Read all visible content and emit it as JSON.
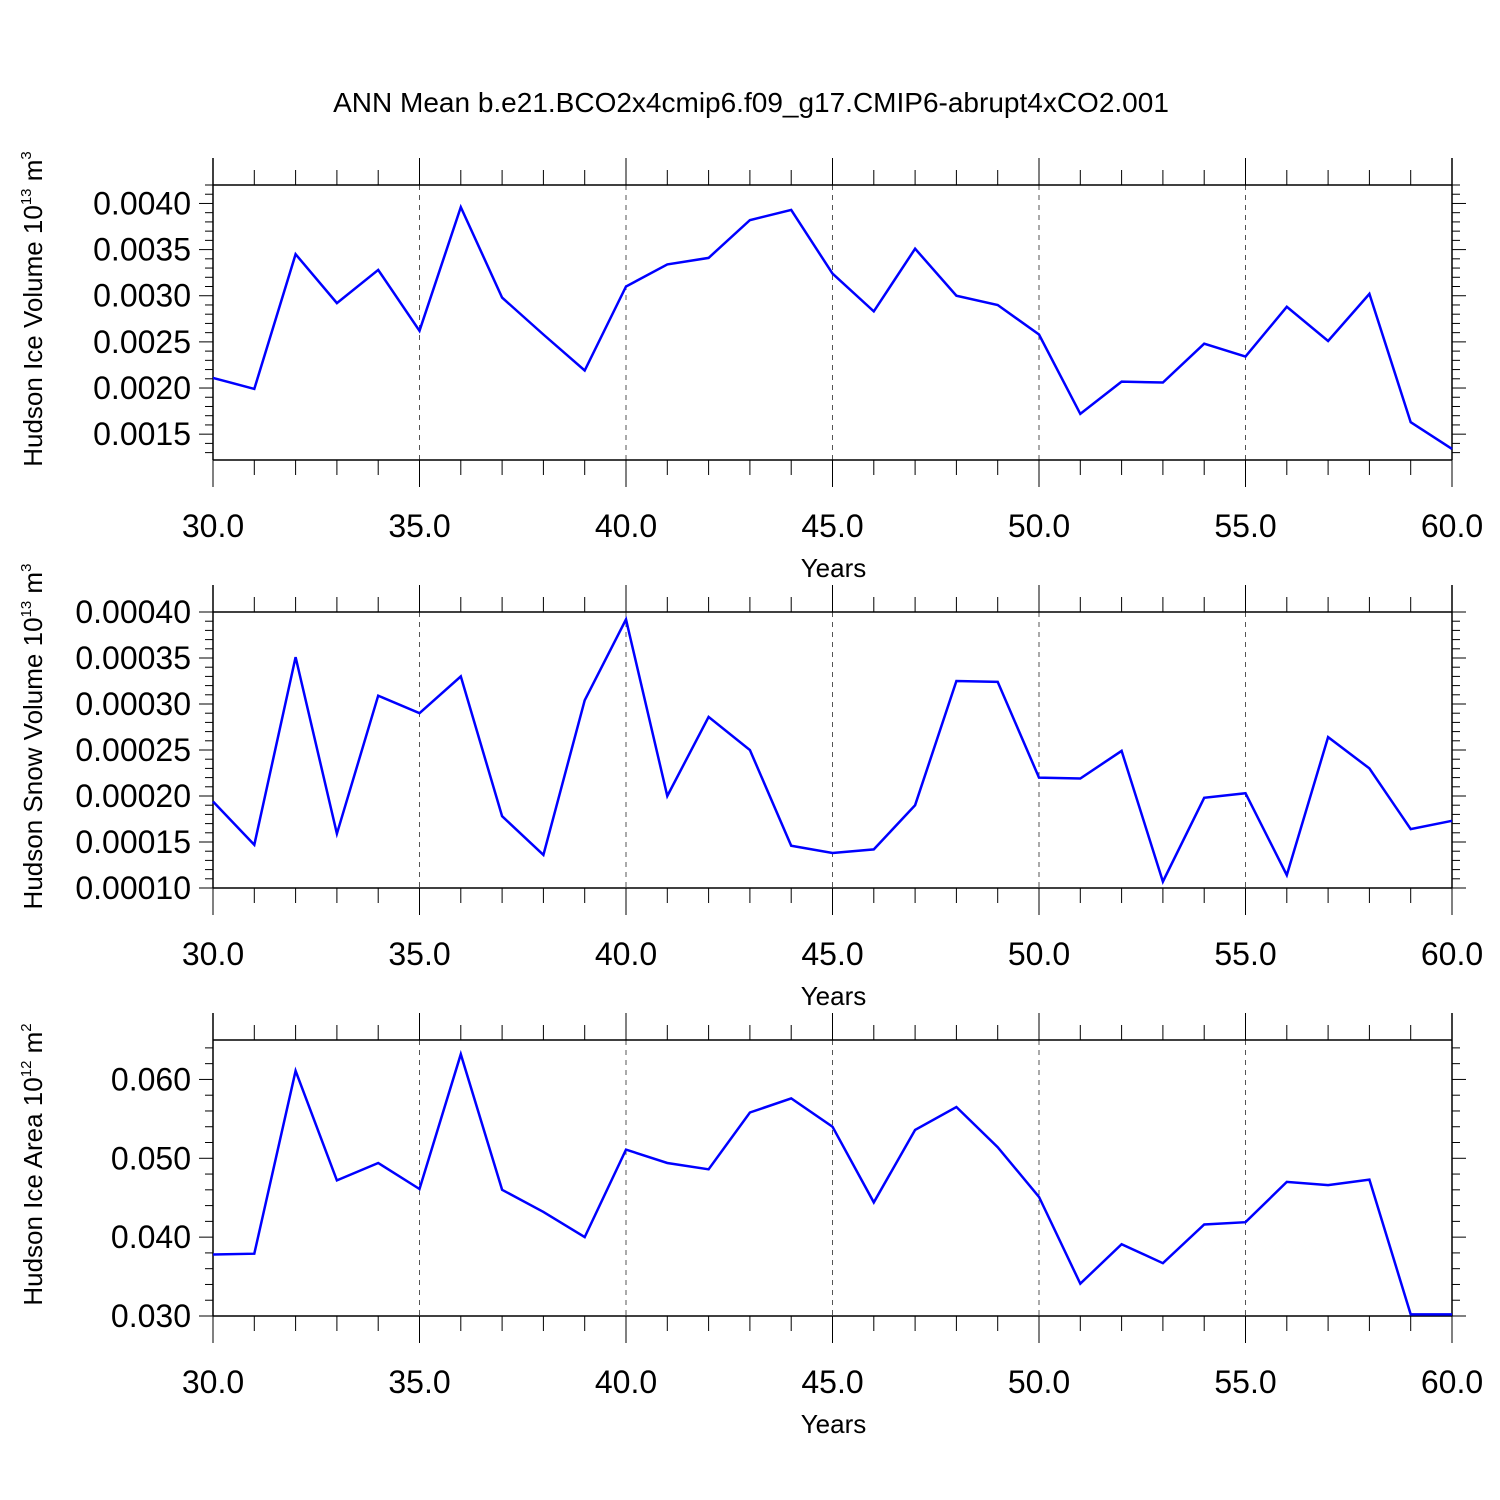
{
  "title": "ANN Mean b.e21.BCO2x4cmip6.f09_g17.CMIP6-abrupt4xCO2.001",
  "colors": {
    "line": "#0000ff",
    "axis": "#000000",
    "grid": "#555555"
  },
  "chart_data": [
    {
      "type": "line",
      "xlabel": "Years",
      "ylabel": {
        "main": "Hudson Ice Volume 10",
        "exp": "13",
        "unit": " m",
        "unit_exp": "3"
      },
      "xlim": [
        30,
        60
      ],
      "ylim": [
        0.00122,
        0.0042
      ],
      "xticks": [
        "30.0",
        "35.0",
        "40.0",
        "45.0",
        "50.0",
        "55.0",
        "60.0"
      ],
      "yticks": [
        {
          "value": 0.0015,
          "label": "0.0015"
        },
        {
          "value": 0.002,
          "label": "0.0020"
        },
        {
          "value": 0.0025,
          "label": "0.0025"
        },
        {
          "value": 0.003,
          "label": "0.0030"
        },
        {
          "value": 0.0035,
          "label": "0.0035"
        },
        {
          "value": 0.004,
          "label": "0.0040"
        }
      ],
      "x": [
        30,
        31,
        32,
        33,
        34,
        35,
        36,
        37,
        38,
        39,
        40,
        41,
        42,
        43,
        44,
        45,
        46,
        47,
        48,
        49,
        50,
        51,
        52,
        53,
        54,
        55,
        56,
        57,
        58,
        59,
        60
      ],
      "values": [
        0.00211,
        0.00199,
        0.00345,
        0.00292,
        0.00328,
        0.00262,
        0.00396,
        0.00298,
        0.00258,
        0.00219,
        0.0031,
        0.00334,
        0.00341,
        0.00382,
        0.00393,
        0.00324,
        0.00283,
        0.00351,
        0.003,
        0.0029,
        0.00258,
        0.00172,
        0.00207,
        0.00206,
        0.00248,
        0.00234,
        0.00288,
        0.00251,
        0.00302,
        0.00163,
        0.00134
      ],
      "grid": "dashed vertical at major x ticks"
    },
    {
      "type": "line",
      "xlabel": "Years",
      "ylabel": {
        "main": "Hudson Snow Volume 10",
        "exp": "13",
        "unit": " m",
        "unit_exp": "3"
      },
      "xlim": [
        30,
        60
      ],
      "ylim": [
        0.0001,
        0.0004
      ],
      "xticks": [
        "30.0",
        "35.0",
        "40.0",
        "45.0",
        "50.0",
        "55.0",
        "60.0"
      ],
      "yticks": [
        {
          "value": 0.0001,
          "label": "0.00010"
        },
        {
          "value": 0.00015,
          "label": "0.00015"
        },
        {
          "value": 0.0002,
          "label": "0.00020"
        },
        {
          "value": 0.00025,
          "label": "0.00025"
        },
        {
          "value": 0.0003,
          "label": "0.00030"
        },
        {
          "value": 0.00035,
          "label": "0.00035"
        },
        {
          "value": 0.0004,
          "label": "0.00040"
        }
      ],
      "x": [
        30,
        31,
        32,
        33,
        34,
        35,
        36,
        37,
        38,
        39,
        40,
        41,
        42,
        43,
        44,
        45,
        46,
        47,
        48,
        49,
        50,
        51,
        52,
        53,
        54,
        55,
        56,
        57,
        58,
        59,
        60
      ],
      "values": [
        0.000194,
        0.000147,
        0.000351,
        0.000159,
        0.000309,
        0.00029,
        0.00033,
        0.000178,
        0.000136,
        0.000304,
        0.000392,
        0.0002,
        0.000286,
        0.00025,
        0.000146,
        0.000138,
        0.000142,
        0.00019,
        0.000325,
        0.000324,
        0.00022,
        0.000219,
        0.000249,
        0.000107,
        0.000198,
        0.000203,
        0.000114,
        0.000264,
        0.00023,
        0.000164,
        0.000173
      ],
      "grid": "dashed vertical at major x ticks"
    },
    {
      "type": "line",
      "xlabel": "Years",
      "ylabel": {
        "main": "Hudson Ice Area 10",
        "exp": "12",
        "unit": " m",
        "unit_exp": "2"
      },
      "xlim": [
        30,
        60
      ],
      "ylim": [
        0.03,
        0.065
      ],
      "xticks": [
        "30.0",
        "35.0",
        "40.0",
        "45.0",
        "50.0",
        "55.0",
        "60.0"
      ],
      "yticks": [
        {
          "value": 0.03,
          "label": "0.030"
        },
        {
          "value": 0.04,
          "label": "0.040"
        },
        {
          "value": 0.05,
          "label": "0.050"
        },
        {
          "value": 0.06,
          "label": "0.060"
        }
      ],
      "x": [
        30,
        31,
        32,
        33,
        34,
        35,
        36,
        37,
        38,
        39,
        40,
        41,
        42,
        43,
        44,
        45,
        46,
        47,
        48,
        49,
        50,
        51,
        52,
        53,
        54,
        55,
        56,
        57,
        58,
        59,
        60
      ],
      "values": [
        0.0378,
        0.0379,
        0.0611,
        0.0472,
        0.0494,
        0.0461,
        0.0632,
        0.046,
        0.0432,
        0.04,
        0.0511,
        0.0494,
        0.0486,
        0.0558,
        0.0576,
        0.054,
        0.0444,
        0.0536,
        0.0565,
        0.0514,
        0.0451,
        0.0341,
        0.0391,
        0.0367,
        0.0416,
        0.0419,
        0.047,
        0.0466,
        0.0473,
        0.0302,
        0.0302
      ],
      "grid": "dashed vertical at major x ticks"
    }
  ]
}
